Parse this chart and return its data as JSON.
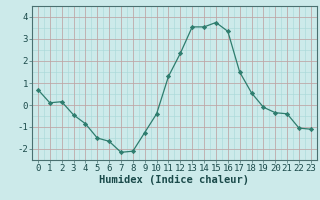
{
  "xlabel": "Humidex (Indice chaleur)",
  "x": [
    0,
    1,
    2,
    3,
    4,
    5,
    6,
    7,
    8,
    9,
    10,
    11,
    12,
    13,
    14,
    15,
    16,
    17,
    18,
    19,
    20,
    21,
    22,
    23
  ],
  "y": [
    0.7,
    0.1,
    0.15,
    -0.45,
    -0.85,
    -1.5,
    -1.65,
    -2.15,
    -2.1,
    -1.25,
    -0.4,
    1.3,
    2.35,
    3.55,
    3.55,
    3.75,
    3.35,
    1.5,
    0.55,
    -0.1,
    -0.35,
    -0.4,
    -1.05,
    -1.1
  ],
  "line_color": "#2e7d6e",
  "marker": "D",
  "marker_size": 2.2,
  "bg_color": "#cceaea",
  "grid_minor_color": "#a8d8d8",
  "grid_major_color": "#c4a0a0",
  "ylim": [
    -2.5,
    4.5
  ],
  "yticks": [
    -2,
    -1,
    0,
    1,
    2,
    3,
    4
  ],
  "xlim": [
    -0.5,
    23.5
  ],
  "tick_fontsize": 6.5,
  "label_fontsize": 7.5,
  "tick_color": "#1a4a4a",
  "spine_color": "#4a7070"
}
